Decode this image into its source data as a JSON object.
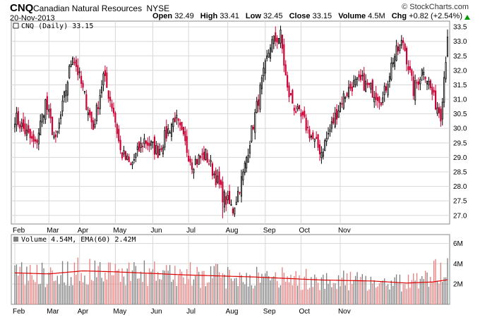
{
  "header": {
    "symbol": "CNQ",
    "name": "Canadian Natural Resources",
    "exchange": "NYSE",
    "date": "20-Nov-2013",
    "brand": "© StockCharts.com",
    "open_label": "Open",
    "open": "32.49",
    "high_label": "High",
    "high": "33.41",
    "low_label": "Low",
    "low": "32.45",
    "close_label": "Close",
    "close": "33.15",
    "volume_label": "Volume",
    "volume": "4.5M",
    "chg_label": "Chg",
    "chg": "+0.82 (+2.54%)",
    "chg_color": "#009900"
  },
  "price_legend": "CNQ (Daily) 33.15",
  "volume_legend": "Volume 4.54M, EMA(60) 2.42M",
  "colors": {
    "up": "#000000",
    "down": "#cc0033",
    "vol_up": "#808080",
    "vol_down": "#e88080",
    "ema": "#dd0000",
    "grid": "#d8d8d8"
  },
  "chart_data": [
    {
      "type": "candlestick",
      "title": "CNQ (Daily) 33.15",
      "x_ticks": [
        "Feb",
        "Mar",
        "Apr",
        "May",
        "Jun",
        "Jul",
        "Aug",
        "Sep",
        "Oct",
        "Nov"
      ],
      "y_ticks": [
        "27.0",
        "27.5",
        "28.0",
        "28.5",
        "29.0",
        "29.5",
        "30.0",
        "30.5",
        "31.0",
        "31.5",
        "32.0",
        "32.5",
        "33.0",
        "33.5"
      ],
      "ylim": [
        26.8,
        33.6
      ],
      "grid": true,
      "scale": "linear",
      "close_anchors": [
        [
          0,
          30.4
        ],
        [
          12,
          29.4
        ],
        [
          18,
          30.9
        ],
        [
          24,
          29.5
        ],
        [
          34,
          32.6
        ],
        [
          46,
          30.0
        ],
        [
          52,
          31.8
        ],
        [
          58,
          30.6
        ],
        [
          62,
          29.2
        ],
        [
          68,
          28.7
        ],
        [
          76,
          29.6
        ],
        [
          84,
          29.2
        ],
        [
          94,
          30.4
        ],
        [
          104,
          28.8
        ],
        [
          112,
          29.1
        ],
        [
          118,
          28.3
        ],
        [
          122,
          27.7
        ],
        [
          128,
          27.2
        ],
        [
          134,
          28.4
        ],
        [
          138,
          29.6
        ],
        [
          144,
          31.3
        ],
        [
          150,
          32.9
        ],
        [
          156,
          33.2
        ],
        [
          160,
          31.3
        ],
        [
          166,
          30.5
        ],
        [
          170,
          30.2
        ],
        [
          176,
          29.5
        ],
        [
          180,
          29.2
        ],
        [
          186,
          30.1
        ],
        [
          192,
          31.0
        ],
        [
          198,
          31.5
        ],
        [
          204,
          31.6
        ],
        [
          210,
          31.3
        ],
        [
          216,
          31.0
        ],
        [
          222,
          32.4
        ],
        [
          228,
          33.0
        ],
        [
          234,
          31.3
        ],
        [
          240,
          32.1
        ],
        [
          246,
          31.0
        ],
        [
          250,
          30.5
        ],
        [
          252,
          31.8
        ],
        [
          254,
          33.15
        ]
      ]
    },
    {
      "type": "bar",
      "title": "Volume 4.54M, EMA(60) 2.42M",
      "x_ticks": [
        "Feb",
        "Mar",
        "Apr",
        "May",
        "Jun",
        "Jul",
        "Aug",
        "Sep",
        "Oct",
        "Nov"
      ],
      "y_ticks": [
        "2M",
        "4M",
        "6M"
      ],
      "ylim": [
        0,
        6.6
      ],
      "series": [
        {
          "name": "Volume",
          "last": 4.54
        },
        {
          "name": "EMA(60)",
          "last": 2.42,
          "anchors": [
            [
              0,
              3.1
            ],
            [
              20,
              3.0
            ],
            [
              40,
              3.3
            ],
            [
              60,
              3.2
            ],
            [
              100,
              2.9
            ],
            [
              140,
              2.7
            ],
            [
              180,
              2.4
            ],
            [
              210,
              2.3
            ],
            [
              230,
              2.1
            ],
            [
              245,
              2.2
            ],
            [
              254,
              2.42
            ]
          ]
        }
      ]
    }
  ]
}
